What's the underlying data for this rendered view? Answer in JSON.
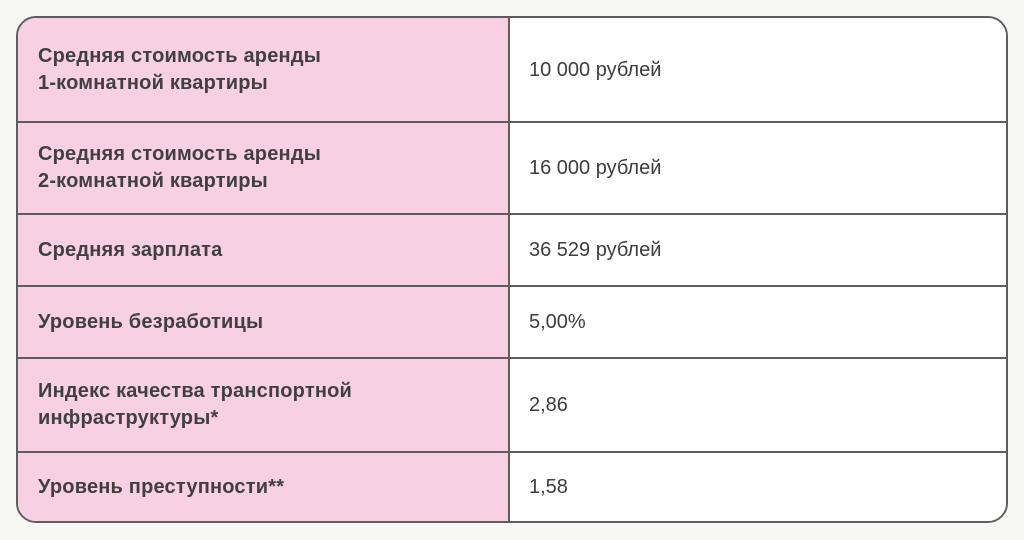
{
  "chart_data": {
    "type": "table",
    "grid": true,
    "rows": [
      {
        "label": "Средняя стоимость аренды\n1-комнатной квартиры",
        "value": "10 000 рублей"
      },
      {
        "label": "Средняя стоимость аренды\n2-комнатной квартиры",
        "value": "16 000 рублей"
      },
      {
        "label": "Средняя зарплата",
        "value": "36 529 рублей"
      },
      {
        "label": "Уровень безработицы",
        "value": "5,00%"
      },
      {
        "label": "Индекс качества транспортной\nинфраструктуры*",
        "value": "2,86"
      },
      {
        "label": "Уровень преступности**",
        "value": "1,58"
      }
    ]
  },
  "colors": {
    "label_cell_background": "#f7d0e3",
    "value_cell_background": "#ffffff",
    "border": "#5e5e5e",
    "label_text": "#404040",
    "value_text": "#3d3d3d",
    "page_background": "#f7f7f5"
  }
}
